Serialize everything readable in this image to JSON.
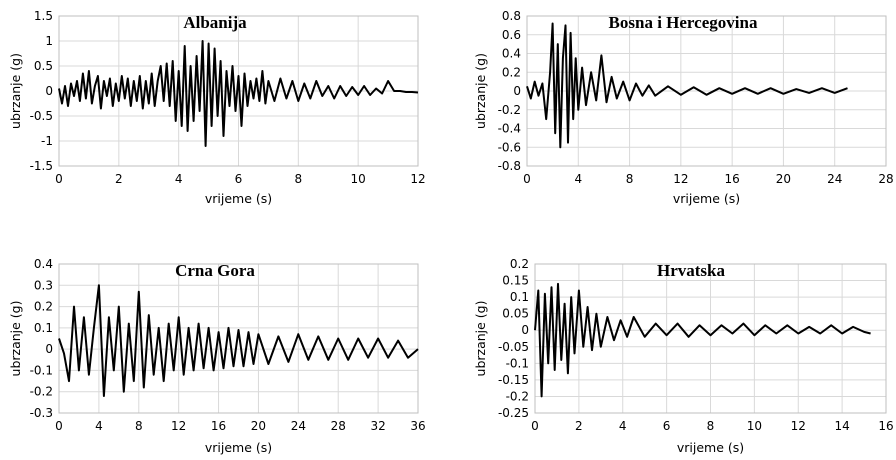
{
  "chart_data": [
    {
      "type": "line",
      "title": "Albanija",
      "xlabel": "vrijeme (s)",
      "ylabel": "ubrzanje (g)",
      "xlim": [
        0,
        12
      ],
      "ylim": [
        -1.5,
        1.5
      ],
      "xticks": [
        0,
        2,
        4,
        6,
        8,
        10,
        12
      ],
      "xtick_labels": [
        "0",
        "2",
        "4",
        "6",
        "8",
        "10",
        "12"
      ],
      "yticks": [
        1.5,
        1,
        0.5,
        0,
        -0.5,
        -1,
        -1.5
      ],
      "ytick_labels": [
        "1.5",
        "1",
        "0.5",
        "0",
        "-0.5",
        "-1",
        "-1.5"
      ],
      "grid": true,
      "series": [
        {
          "x": [
            0,
            0.1,
            0.2,
            0.3,
            0.4,
            0.5,
            0.6,
            0.7,
            0.8,
            0.9,
            1.0,
            1.1,
            1.2,
            1.3,
            1.4,
            1.5,
            1.6,
            1.7,
            1.8,
            1.9,
            2.0,
            2.1,
            2.2,
            2.3,
            2.4,
            2.5,
            2.6,
            2.7,
            2.8,
            2.9,
            3.0,
            3.1,
            3.2,
            3.3,
            3.4,
            3.5,
            3.6,
            3.7,
            3.8,
            3.9,
            4.0,
            4.1,
            4.2,
            4.3,
            4.4,
            4.5,
            4.6,
            4.7,
            4.8,
            4.9,
            5.0,
            5.1,
            5.2,
            5.3,
            5.4,
            5.5,
            5.6,
            5.7,
            5.8,
            5.9,
            6.0,
            6.1,
            6.2,
            6.3,
            6.4,
            6.5,
            6.6,
            6.7,
            6.8,
            6.9,
            7.0,
            7.2,
            7.4,
            7.6,
            7.8,
            8.0,
            8.2,
            8.4,
            8.6,
            8.8,
            9.0,
            9.2,
            9.4,
            9.6,
            9.8,
            10.0,
            10.2,
            10.4,
            10.6,
            10.8,
            11.0,
            11.2,
            11.4,
            11.6,
            11.8,
            12.0
          ],
          "y": [
            0.05,
            -0.25,
            0.1,
            -0.3,
            0.15,
            -0.1,
            0.2,
            -0.2,
            0.35,
            -0.15,
            0.4,
            -0.25,
            0.1,
            0.3,
            -0.35,
            0.2,
            -0.1,
            0.25,
            -0.3,
            0.15,
            -0.2,
            0.3,
            -0.15,
            0.25,
            -0.3,
            0.2,
            -0.2,
            0.3,
            -0.35,
            0.2,
            -0.25,
            0.35,
            -0.3,
            0.2,
            0.5,
            -0.2,
            0.55,
            -0.3,
            0.6,
            -0.6,
            0.4,
            -0.7,
            0.9,
            -0.8,
            0.5,
            -0.6,
            0.7,
            -0.4,
            1.0,
            -1.1,
            0.95,
            -0.7,
            0.85,
            -0.5,
            0.6,
            -0.9,
            0.4,
            -0.3,
            0.5,
            -0.4,
            0.3,
            -0.7,
            0.35,
            -0.3,
            0.2,
            -0.15,
            0.25,
            -0.2,
            0.4,
            -0.25,
            0.2,
            -0.2,
            0.25,
            -0.15,
            0.2,
            -0.2,
            0.15,
            -0.15,
            0.2,
            -0.1,
            0.1,
            -0.15,
            0.1,
            -0.1,
            0.08,
            -0.08,
            0.1,
            -0.08,
            0.05,
            -0.05,
            0.2,
            0.0,
            0.0,
            -0.02,
            -0.02,
            -0.03
          ]
        }
      ]
    },
    {
      "type": "line",
      "title": "Bosna i Hercegovina",
      "xlabel": "vrijeme (s)",
      "ylabel": "ubrzanje (g)",
      "xlim": [
        0,
        28
      ],
      "ylim": [
        -0.8,
        0.8
      ],
      "xticks": [
        0,
        4,
        8,
        12,
        16,
        20,
        24,
        28
      ],
      "xtick_labels": [
        "0",
        "4",
        "8",
        "12",
        "16",
        "20",
        "24",
        "28"
      ],
      "yticks": [
        0.8,
        0.6,
        0.4,
        0.2,
        0,
        -0.2,
        -0.4,
        -0.6,
        -0.8
      ],
      "ytick_labels": [
        "0.8",
        "0.6",
        "0.4",
        "0.2",
        "0",
        "-0.2",
        "-0.4",
        "-0.6",
        "-0.8"
      ],
      "grid": true,
      "series": [
        {
          "x": [
            0,
            0.3,
            0.6,
            0.9,
            1.2,
            1.5,
            1.8,
            2.0,
            2.2,
            2.4,
            2.6,
            2.8,
            3.0,
            3.2,
            3.4,
            3.6,
            3.8,
            4.0,
            4.3,
            4.6,
            5.0,
            5.4,
            5.8,
            6.2,
            6.6,
            7.0,
            7.5,
            8.0,
            8.5,
            9.0,
            9.5,
            10.0,
            11,
            12,
            13,
            14,
            15,
            16,
            17,
            18,
            19,
            20,
            21,
            22,
            23,
            24,
            25
          ],
          "y": [
            0.05,
            -0.08,
            0.1,
            -0.05,
            0.08,
            -0.3,
            0.2,
            0.72,
            -0.45,
            0.5,
            -0.6,
            0.35,
            0.7,
            -0.55,
            0.62,
            -0.3,
            0.35,
            -0.2,
            0.25,
            -0.15,
            0.2,
            -0.1,
            0.38,
            -0.12,
            0.15,
            -0.08,
            0.1,
            -0.1,
            0.08,
            -0.05,
            0.06,
            -0.05,
            0.05,
            -0.04,
            0.04,
            -0.04,
            0.03,
            -0.03,
            0.03,
            -0.03,
            0.03,
            -0.03,
            0.02,
            -0.02,
            0.03,
            -0.02,
            0.03
          ]
        }
      ]
    },
    {
      "type": "line",
      "title": "Crna Gora",
      "xlabel": "vrijeme (s)",
      "ylabel": "ubrzanje (g)",
      "xlim": [
        0,
        36
      ],
      "ylim": [
        -0.3,
        0.4
      ],
      "xticks": [
        0,
        4,
        8,
        12,
        16,
        20,
        24,
        28,
        32,
        36
      ],
      "xtick_labels": [
        "0",
        "4",
        "8",
        "12",
        "16",
        "20",
        "24",
        "28",
        "32",
        "36"
      ],
      "yticks": [
        0.4,
        0.3,
        0.2,
        0.1,
        0,
        -0.1,
        -0.2,
        -0.3
      ],
      "ytick_labels": [
        "0.4",
        "0.3",
        "0.2",
        "0.1",
        "0",
        "-0.1",
        "-0.2",
        "-0.3"
      ],
      "grid": true,
      "series": [
        {
          "x": [
            0,
            0.5,
            1.0,
            1.5,
            2.0,
            2.5,
            3.0,
            3.5,
            4.0,
            4.5,
            5.0,
            5.5,
            6.0,
            6.5,
            7.0,
            7.5,
            8.0,
            8.5,
            9.0,
            9.5,
            10,
            10.5,
            11,
            11.5,
            12,
            12.5,
            13,
            13.5,
            14,
            14.5,
            15,
            15.5,
            16,
            16.5,
            17,
            17.5,
            18,
            18.5,
            19,
            19.5,
            20,
            21,
            22,
            23,
            24,
            25,
            26,
            27,
            28,
            29,
            30,
            31,
            32,
            33,
            34,
            35,
            36
          ],
          "y": [
            0.05,
            -0.02,
            -0.15,
            0.2,
            -0.1,
            0.15,
            -0.12,
            0.1,
            0.3,
            -0.22,
            0.15,
            -0.1,
            0.2,
            -0.2,
            0.12,
            -0.15,
            0.27,
            -0.18,
            0.16,
            -0.12,
            0.1,
            -0.15,
            0.12,
            -0.1,
            0.15,
            -0.12,
            0.1,
            -0.1,
            0.12,
            -0.09,
            0.1,
            -0.1,
            0.08,
            -0.09,
            0.1,
            -0.08,
            0.09,
            -0.08,
            0.08,
            -0.07,
            0.07,
            -0.07,
            0.06,
            -0.06,
            0.07,
            -0.05,
            0.06,
            -0.05,
            0.05,
            -0.05,
            0.05,
            -0.04,
            0.05,
            -0.04,
            0.04,
            -0.04,
            0.0
          ]
        }
      ]
    },
    {
      "type": "line",
      "title": "Hrvatska",
      "xlabel": "vrijeme (s)",
      "ylabel": "ubrzanje (g)",
      "xlim": [
        0,
        16
      ],
      "ylim": [
        -0.25,
        0.2
      ],
      "xticks": [
        0,
        2,
        4,
        6,
        8,
        10,
        12,
        14,
        16
      ],
      "xtick_labels": [
        "0",
        "2",
        "4",
        "6",
        "8",
        "10",
        "12",
        "14",
        "16"
      ],
      "yticks": [
        0.2,
        0.15,
        0.1,
        0.05,
        0,
        -0.05,
        -0.1,
        -0.15,
        -0.2,
        -0.25
      ],
      "ytick_labels": [
        "0.2",
        "0.15",
        "0.1",
        "0.05",
        "0",
        "-0.05",
        "-0.1",
        "-0.15",
        "-0.2",
        "-0.25"
      ],
      "grid": true,
      "series": [
        {
          "x": [
            0,
            0.15,
            0.3,
            0.45,
            0.6,
            0.75,
            0.9,
            1.05,
            1.2,
            1.35,
            1.5,
            1.65,
            1.8,
            2.0,
            2.2,
            2.4,
            2.6,
            2.8,
            3.0,
            3.3,
            3.6,
            3.9,
            4.2,
            4.5,
            5.0,
            5.5,
            6.0,
            6.5,
            7.0,
            7.5,
            8.0,
            8.5,
            9.0,
            9.5,
            10.0,
            10.5,
            11.0,
            11.5,
            12.0,
            12.5,
            13.0,
            13.5,
            14.0,
            14.5,
            15.0,
            15.3
          ],
          "y": [
            0.0,
            0.12,
            -0.2,
            0.11,
            -0.1,
            0.13,
            -0.12,
            0.14,
            -0.09,
            0.08,
            -0.13,
            0.1,
            -0.07,
            0.12,
            -0.05,
            0.07,
            -0.06,
            0.05,
            -0.05,
            0.04,
            -0.03,
            0.03,
            -0.02,
            0.04,
            -0.02,
            0.02,
            -0.015,
            0.02,
            -0.02,
            0.015,
            -0.015,
            0.015,
            -0.01,
            0.02,
            -0.015,
            0.015,
            -0.01,
            0.015,
            -0.01,
            0.01,
            -0.01,
            0.015,
            -0.01,
            0.01,
            -0.005,
            -0.01
          ]
        }
      ]
    }
  ]
}
